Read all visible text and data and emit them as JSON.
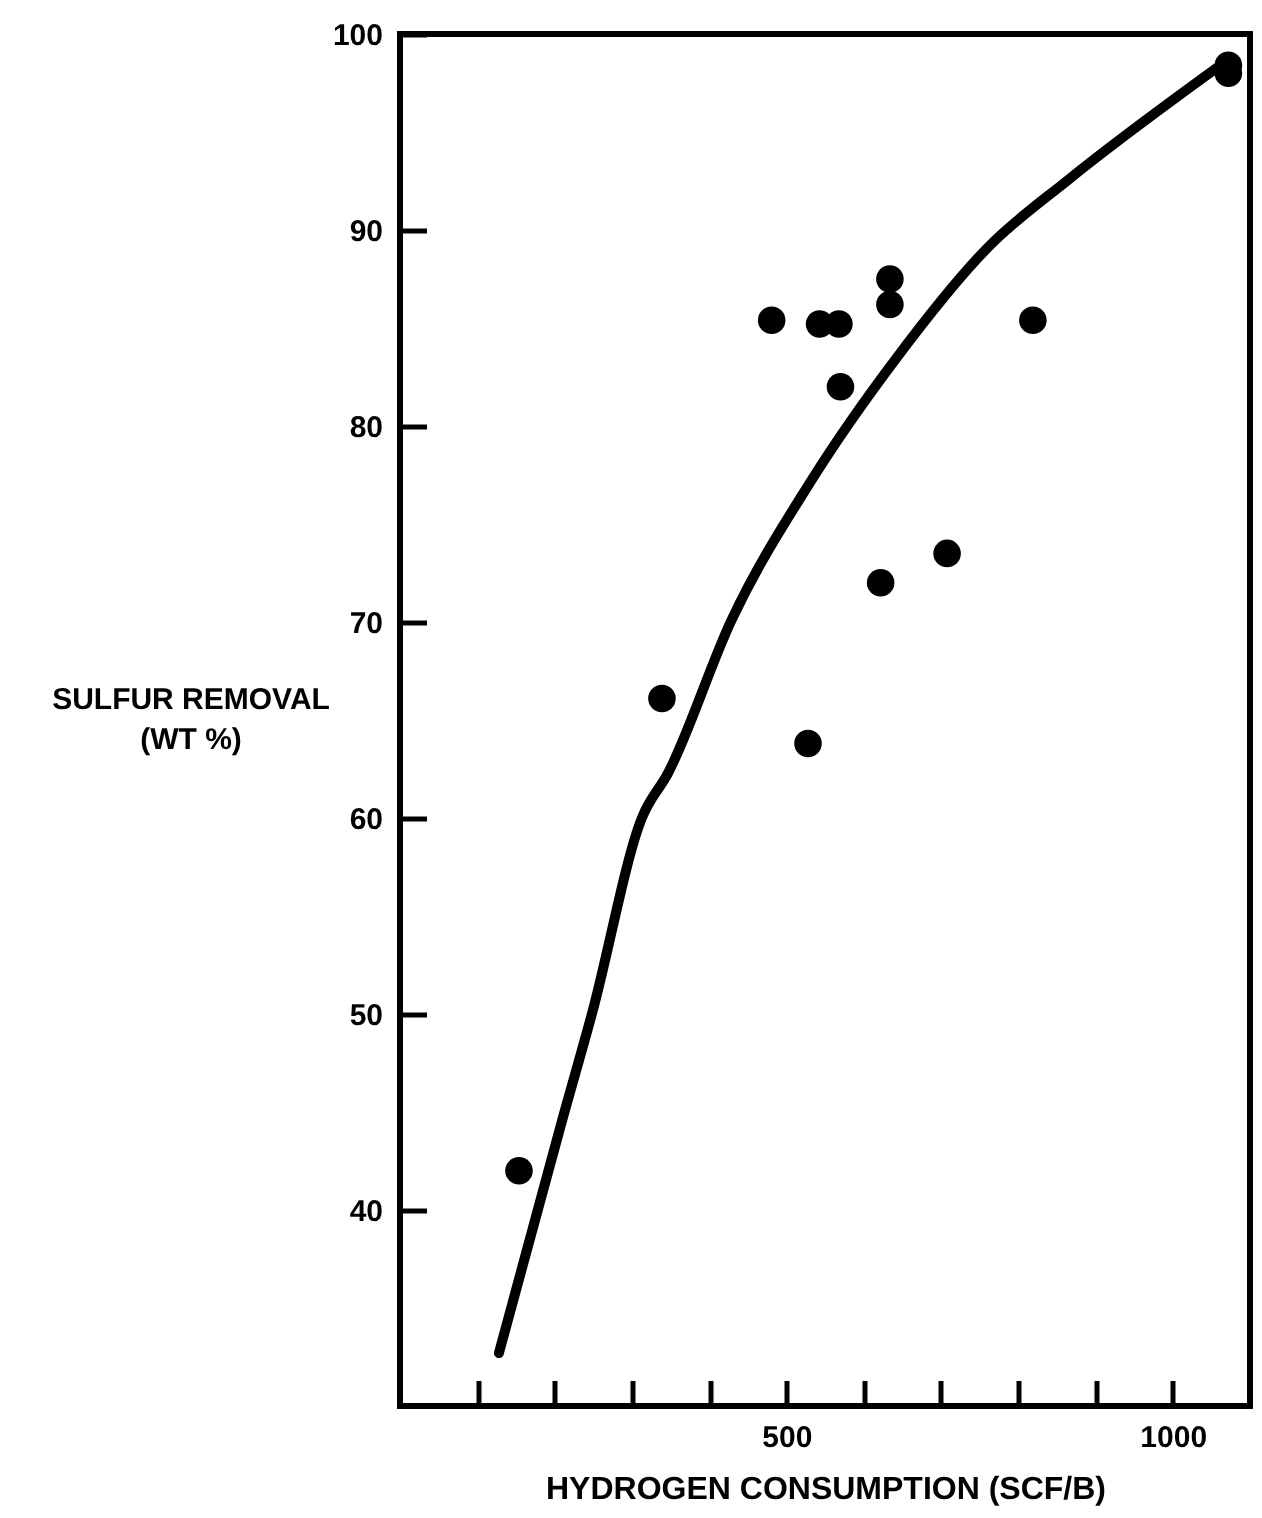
{
  "chart_data": {
    "type": "scatter",
    "xlabel": "HYDROGEN CONSUMPTION (SCF/B)",
    "ylabel": "SULFUR REMOVAL\n(WT %)",
    "xlim": [
      0,
      1100
    ],
    "ylim": [
      30,
      100
    ],
    "xticks": [
      {
        "value": 100,
        "label": null
      },
      {
        "value": 200,
        "label": null
      },
      {
        "value": 300,
        "label": null
      },
      {
        "value": 400,
        "label": null
      },
      500,
      {
        "value": 600,
        "label": null
      },
      {
        "value": 700,
        "label": null
      },
      {
        "value": 800,
        "label": null
      },
      {
        "value": 900,
        "label": null
      },
      1000
    ],
    "yticks": [
      40,
      50,
      60,
      70,
      80,
      90,
      100
    ],
    "marker": "circle",
    "series": [
      {
        "color": "#000000",
        "x": [
          154,
          339,
          481,
          528,
          543,
          568,
          570,
          622,
          634,
          634,
          708,
          819,
          1072,
          1072
        ],
        "values": [
          42.0,
          66.1,
          85.4,
          63.8,
          85.2,
          85.2,
          82.0,
          72.0,
          87.5,
          86.2,
          73.5,
          85.4,
          98.4,
          98.0
        ]
      },
      {
        "type": "line",
        "color": "#000000",
        "marker": "none",
        "x": [
          128,
          210,
          249,
          313,
          347,
          429,
          532,
          643,
          763,
          866,
          1072
        ],
        "values": [
          32.7,
          44.6,
          50.1,
          60.0,
          62.3,
          70.1,
          77.2,
          83.5,
          89.2,
          92.6,
          98.7
        ]
      }
    ]
  }
}
